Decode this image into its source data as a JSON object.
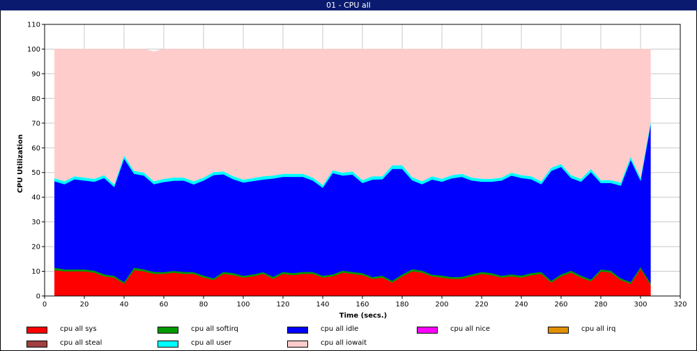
{
  "window_title": "01 - CPU all",
  "chart_data": {
    "type": "area",
    "stacked": true,
    "xlabel": "Time (secs.)",
    "ylabel": "CPU Utilization",
    "xlim": [
      0,
      320
    ],
    "ylim": [
      0,
      110
    ],
    "x_ticks": [
      0,
      20,
      40,
      60,
      80,
      100,
      120,
      140,
      160,
      180,
      200,
      220,
      240,
      260,
      280,
      300,
      320
    ],
    "y_ticks": [
      0,
      10,
      20,
      30,
      40,
      50,
      60,
      70,
      80,
      90,
      100,
      110
    ],
    "grid": true,
    "legend_position": "bottom",
    "x": [
      5,
      10,
      15,
      20,
      25,
      30,
      35,
      40,
      45,
      50,
      55,
      60,
      65,
      70,
      75,
      80,
      85,
      90,
      95,
      100,
      105,
      110,
      115,
      120,
      125,
      130,
      135,
      140,
      145,
      150,
      155,
      160,
      165,
      170,
      175,
      180,
      185,
      190,
      195,
      200,
      205,
      210,
      215,
      220,
      225,
      230,
      235,
      240,
      245,
      250,
      255,
      260,
      265,
      270,
      275,
      280,
      285,
      290,
      295,
      300,
      305
    ],
    "series": [
      {
        "name": "cpu all sys",
        "color": "#ff0000",
        "values": [
          10.5,
          10,
          10,
          10,
          9.5,
          8,
          7.5,
          5,
          10.5,
          10,
          9,
          9,
          9.5,
          9,
          9,
          7.5,
          6.5,
          9,
          8.5,
          7.5,
          8,
          9,
          7,
          9,
          8.5,
          9,
          9,
          7.5,
          8,
          9.5,
          9,
          8.5,
          7,
          7.5,
          5.5,
          8,
          10,
          9.5,
          8,
          7.5,
          7,
          7,
          8,
          9,
          8.5,
          7.5,
          8,
          7.5,
          8.5,
          9,
          5.5,
          8,
          9.5,
          7.5,
          6,
          10,
          9.5,
          6.5,
          5,
          11,
          4.5
        ]
      },
      {
        "name": "cpu all softirq",
        "color": "#009900",
        "values": [
          1,
          0.8,
          0.8,
          0.8,
          0.8,
          0.8,
          0.7,
          0.7,
          1,
          0.8,
          0.8,
          0.7,
          0.7,
          0.8,
          0.7,
          0.8,
          0.7,
          0.8,
          0.8,
          0.7,
          0.8,
          0.7,
          0.8,
          0.8,
          0.8,
          0.8,
          0.8,
          0.7,
          0.8,
          0.8,
          0.8,
          0.8,
          0.7,
          0.8,
          0.7,
          0.8,
          0.9,
          0.8,
          0.7,
          0.8,
          0.7,
          0.8,
          0.8,
          0.8,
          0.8,
          0.7,
          0.8,
          0.8,
          0.8,
          0.8,
          0.7,
          0.8,
          0.8,
          0.8,
          0.7,
          0.8,
          0.8,
          0.7,
          0.7,
          0.8,
          0.8
        ]
      },
      {
        "name": "cpu all idle",
        "color": "#0000ff",
        "values": [
          35,
          34.5,
          36.5,
          36,
          36,
          39,
          36,
          50,
          38,
          38,
          35.5,
          36.5,
          36.5,
          37,
          35.5,
          38.5,
          41.8,
          39.5,
          38,
          37.8,
          37.8,
          37.5,
          39.8,
          38.5,
          39,
          38.5,
          37,
          35.7,
          41,
          38.5,
          39.4,
          36.5,
          39.5,
          39,
          45.3,
          42.7,
          36,
          35,
          38.5,
          38,
          40,
          40.5,
          38,
          36.5,
          37,
          38.6,
          40,
          39.5,
          38,
          35.5,
          44.5,
          43.5,
          37.5,
          38,
          43.5,
          35,
          35.5,
          37.5,
          49.5,
          35,
          64
        ]
      },
      {
        "name": "cpu all nice",
        "color": "#ff00ff",
        "values": [
          0,
          0,
          0,
          0,
          0,
          0,
          0,
          0,
          0,
          0,
          0,
          0,
          0,
          0,
          0,
          0,
          0,
          0,
          0,
          0,
          0,
          0,
          0,
          0,
          0,
          0,
          0,
          0,
          0,
          0,
          0,
          0,
          0,
          0,
          0,
          0,
          0,
          0,
          0,
          0,
          0,
          0,
          0,
          0,
          0,
          0,
          0,
          0,
          0,
          0,
          0,
          0,
          0,
          0,
          0,
          0,
          0,
          0,
          0,
          0,
          0
        ]
      },
      {
        "name": "cpu all irq",
        "color": "#e09000",
        "values": [
          0,
          0,
          0,
          0,
          0,
          0,
          0,
          0,
          0,
          0,
          0,
          0,
          0,
          0,
          0,
          0,
          0,
          0,
          0,
          0,
          0,
          0,
          0,
          0,
          0,
          0,
          0,
          0,
          0,
          0,
          0,
          0,
          0,
          0,
          0,
          0,
          0,
          0,
          0,
          0,
          0,
          0,
          0,
          0,
          0,
          0,
          0,
          0,
          0,
          0,
          0,
          0,
          0,
          0,
          0,
          0,
          0,
          0,
          0,
          0,
          0
        ]
      },
      {
        "name": "cpu all steal",
        "color": "#a04040",
        "values": [
          0,
          0,
          0,
          0,
          0,
          0,
          0,
          0,
          0,
          0,
          0,
          0,
          0,
          0,
          0,
          0,
          0,
          0,
          0,
          0,
          0,
          0,
          0,
          0,
          0,
          0,
          0,
          0,
          0,
          0,
          0,
          0,
          0,
          0,
          0,
          0,
          0,
          0,
          0,
          0,
          0,
          0,
          0,
          0,
          0,
          0,
          0,
          0,
          0,
          0,
          0,
          0,
          0,
          0,
          0,
          0,
          0,
          0,
          0,
          0,
          0
        ]
      },
      {
        "name": "cpu all user",
        "color": "#00ffff",
        "values": [
          1.2,
          1.2,
          1.2,
          1.2,
          1.2,
          1.2,
          1,
          1.3,
          1.2,
          1.2,
          1.2,
          1.3,
          1.3,
          1.2,
          1.3,
          1.2,
          1.2,
          1.2,
          1.2,
          1.2,
          1.2,
          1.3,
          1.2,
          1.2,
          1.2,
          1.2,
          1.2,
          1.1,
          1.2,
          1.2,
          1.3,
          1.2,
          1.3,
          1.2,
          1.5,
          1.5,
          1.3,
          1.2,
          1.3,
          1.2,
          1.3,
          1.2,
          1.2,
          1.2,
          1.2,
          1.2,
          1.2,
          1.2,
          1.2,
          1.2,
          1.3,
          1.2,
          1.2,
          1.2,
          1.3,
          1.2,
          1.2,
          1.3,
          1.3,
          1.2,
          1.2
        ]
      },
      {
        "name": "cpu all iowait",
        "color": "#ffcccc",
        "values": [
          52.3,
          53.5,
          51.5,
          52,
          52.5,
          51,
          54.8,
          43,
          49.3,
          50,
          52.5,
          52.5,
          52,
          52,
          53.5,
          52,
          49.8,
          49.5,
          51.5,
          52.8,
          52.2,
          51.5,
          51.2,
          50.5,
          50.5,
          50.5,
          52,
          55,
          49,
          50,
          49.5,
          53,
          51.5,
          51.5,
          47,
          47,
          51.8,
          53.5,
          51.5,
          52.5,
          51,
          50.5,
          52,
          52.5,
          52.5,
          52,
          50,
          51,
          51.5,
          53.5,
          48,
          46.5,
          51,
          52.5,
          48.5,
          53,
          53,
          54,
          43.5,
          52,
          29.5
        ]
      }
    ]
  },
  "legend": [
    {
      "label": "cpu all sys",
      "color": "#ff0000"
    },
    {
      "label": "cpu all softirq",
      "color": "#009900"
    },
    {
      "label": "cpu all idle",
      "color": "#0000ff"
    },
    {
      "label": "cpu all nice",
      "color": "#ff00ff"
    },
    {
      "label": "cpu all irq",
      "color": "#e09000"
    },
    {
      "label": "cpu all steal",
      "color": "#a04040"
    },
    {
      "label": "cpu all user",
      "color": "#00ffff"
    },
    {
      "label": "cpu all iowait",
      "color": "#ffcccc"
    }
  ]
}
